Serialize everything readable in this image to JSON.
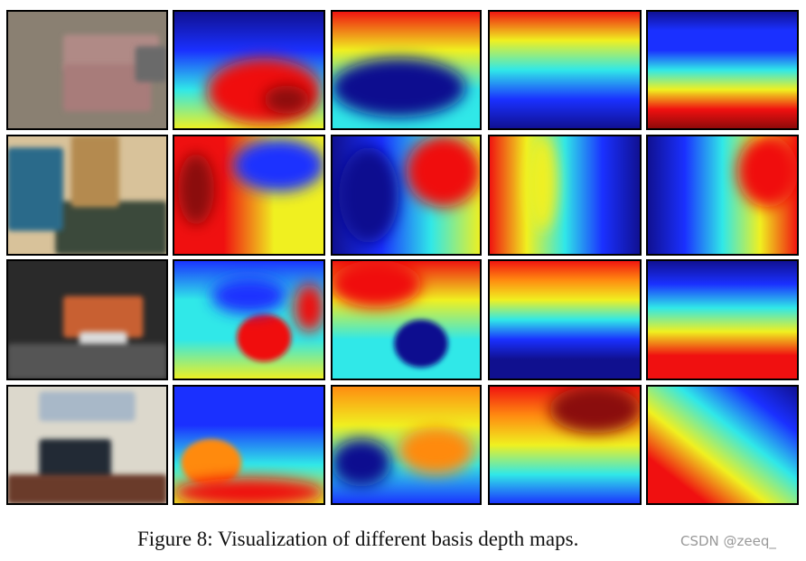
{
  "caption": "Figure 8: Visualization of different basis depth maps.",
  "watermark": "CSDN @zeeq_"
}
